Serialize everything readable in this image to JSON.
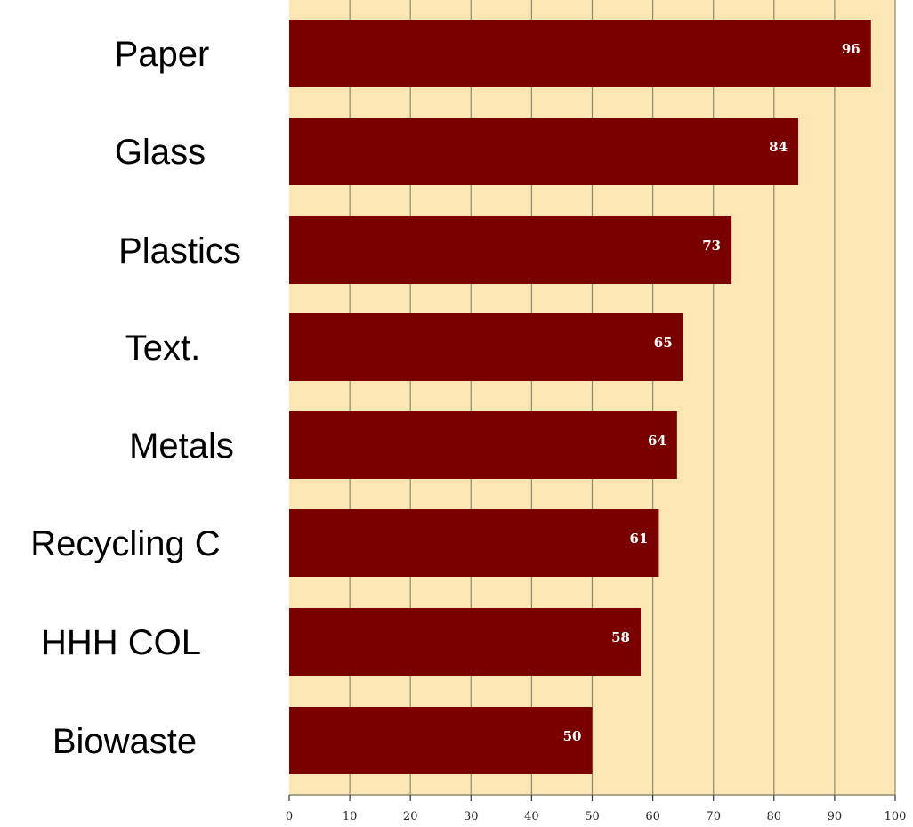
{
  "chart_data": {
    "type": "bar",
    "orientation": "horizontal",
    "categories": [
      "Paper",
      "Glass",
      "Plastics",
      "Text.",
      "Metals",
      "Recycling C",
      "HHH COL",
      "Biowaste"
    ],
    "values": [
      96,
      84,
      73,
      65,
      64,
      61,
      58,
      50
    ],
    "data_labels": [
      "96",
      "84",
      "73",
      "65",
      "64",
      "61",
      "58",
      "50"
    ],
    "title": "",
    "xlabel": "",
    "ylabel": "",
    "xlim": [
      0,
      100
    ],
    "x_ticks": [
      0,
      10,
      20,
      30,
      40,
      50,
      60,
      70,
      80,
      90,
      100
    ],
    "x_tick_labels": [
      "0",
      "10",
      "20",
      "30",
      "40",
      "50",
      "60",
      "70",
      "80",
      "90",
      "100"
    ],
    "grid": "vertical",
    "colors": {
      "bar": "#7a0000",
      "plot_background": "#fce6b4",
      "grid": "#8a8a70",
      "value_label": "#ffffff"
    }
  }
}
